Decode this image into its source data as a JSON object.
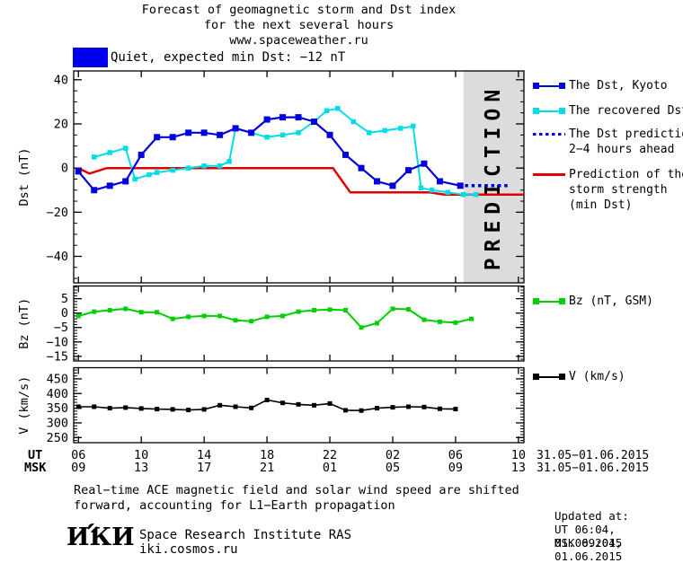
{
  "header": {
    "title_line1": "Forecast of geomagnetic storm and Dst index",
    "title_line2": "for the next several hours",
    "title_line3": "www.spaceweather.ru"
  },
  "status": {
    "label": "Quiet, expected min Dst: −12 nT",
    "swatch_color": "#0000ee"
  },
  "colors": {
    "dst": "#0000dd",
    "recovered": "#00dde6",
    "storm": "#e00000",
    "bz": "#00cf00",
    "v": "#000000",
    "band": "#dcdcdc",
    "band_text": "#c2c2c2"
  },
  "legend": {
    "dst_kyoto": {
      "label": "The Dst, Kyoto"
    },
    "recovered": {
      "label": "The recovered Dst"
    },
    "prediction": {
      "label_line1": "The Dst prediction",
      "label_line2": "2−4 hours ahead"
    },
    "storm": {
      "label_line1": "Prediction of the",
      "label_line2": "storm strength",
      "label_line3": "(min Dst)"
    },
    "bz": {
      "label": "Bz (nT, GSM)"
    },
    "v": {
      "label": "V (km/s)"
    }
  },
  "xaxis": {
    "ut_label": "UT",
    "msk_label": "MSK",
    "ticks": [
      {
        "h": 0,
        "ut": "06",
        "msk": "09"
      },
      {
        "h": 4,
        "ut": "10",
        "msk": "13"
      },
      {
        "h": 8,
        "ut": "14",
        "msk": "17"
      },
      {
        "h": 12,
        "ut": "18",
        "msk": "21"
      },
      {
        "h": 16,
        "ut": "22",
        "msk": "01"
      },
      {
        "h": 20,
        "ut": "02",
        "msk": "05"
      },
      {
        "h": 24,
        "ut": "06",
        "msk": "09"
      },
      {
        "h": 28,
        "ut": "10",
        "msk": "13"
      }
    ],
    "ut_date": "31.05−01.06.2015",
    "msk_date": "31.05−01.06.2015"
  },
  "chart_data": [
    {
      "id": "dst",
      "type": "line",
      "ylabel": "Dst (nT)",
      "xlim": [
        -0.3,
        28.35
      ],
      "ylim": [
        -52,
        44
      ],
      "yticks": [
        [
          40,
          "40"
        ],
        [
          20,
          "20"
        ],
        [
          0,
          "0"
        ],
        [
          -20,
          "−20"
        ],
        [
          -40,
          "−40"
        ]
      ],
      "yminor": 5,
      "xticks": [
        0,
        4,
        8,
        12,
        16,
        20,
        24,
        28
      ],
      "x_unit": "hours since 06:00 UT 31.05.2015",
      "prediction_band": {
        "from": 24.5,
        "label": "PREDICTION",
        "color": "#dcdcdc",
        "text_color": "#c2c2c2"
      },
      "series": [
        {
          "name": "Prediction of the storm strength (min Dst)",
          "color": "#e00000",
          "width": 2.5,
          "marker": 0,
          "points": [
            [
              0,
              0
            ],
            [
              0.7,
              -2.5
            ],
            [
              1.8,
              0
            ],
            [
              16.2,
              0
            ],
            [
              17.3,
              -11
            ],
            [
              22.3,
              -11
            ],
            [
              23.3,
              -12
            ],
            [
              28.35,
              -12
            ]
          ]
        },
        {
          "name": "The recovered Dst",
          "color": "#00dde6",
          "width": 2,
          "marker": 5.5,
          "points": [
            [
              1,
              5
            ],
            [
              2,
              7
            ],
            [
              3,
              9
            ],
            [
              3.6,
              -5
            ],
            [
              4.5,
              -3
            ],
            [
              5,
              -2
            ],
            [
              6,
              -1
            ],
            [
              7,
              0
            ],
            [
              8,
              1
            ],
            [
              9,
              1
            ],
            [
              9.6,
              3
            ],
            [
              10,
              18
            ],
            [
              11,
              16
            ],
            [
              12,
              14
            ],
            [
              13,
              15
            ],
            [
              14,
              16
            ],
            [
              15,
              21
            ],
            [
              15.8,
              26
            ],
            [
              16.5,
              27
            ],
            [
              17.5,
              21
            ],
            [
              18.5,
              16
            ],
            [
              19.5,
              17
            ],
            [
              20.5,
              18
            ],
            [
              21.3,
              19
            ],
            [
              21.8,
              -9
            ],
            [
              22.5,
              -10
            ],
            [
              23.5,
              -11
            ],
            [
              24.5,
              -12
            ],
            [
              25.3,
              -12
            ]
          ]
        },
        {
          "name": "The Dst, Kyoto",
          "color": "#0000dd",
          "width": 2.2,
          "marker": 7,
          "points": [
            [
              0,
              -1.5
            ],
            [
              1,
              -10
            ],
            [
              2,
              -8
            ],
            [
              3,
              -6
            ],
            [
              4,
              6
            ],
            [
              5,
              14
            ],
            [
              6,
              14
            ],
            [
              7,
              16
            ],
            [
              8,
              16
            ],
            [
              9,
              15
            ],
            [
              10,
              18
            ],
            [
              11,
              16
            ],
            [
              12,
              22
            ],
            [
              13,
              23
            ],
            [
              14,
              23
            ],
            [
              15,
              21
            ],
            [
              16,
              15
            ],
            [
              17,
              6
            ],
            [
              18,
              0
            ],
            [
              19,
              -6
            ],
            [
              20,
              -8
            ],
            [
              21,
              -1
            ],
            [
              22,
              2
            ],
            [
              23,
              -6
            ],
            [
              24.3,
              -8
            ]
          ]
        },
        {
          "name": "The Dst prediction 2−4 hours ahead",
          "color": "#0000dd",
          "width": 3.5,
          "marker": 0,
          "dash": "3.5,3.8",
          "points": [
            [
              24.6,
              -8
            ],
            [
              27.4,
              -8
            ]
          ]
        }
      ]
    },
    {
      "id": "bz",
      "type": "line",
      "ylabel": "Bz (nT)",
      "xlim": [
        -0.3,
        28.35
      ],
      "ylim": [
        -16.6,
        9.4
      ],
      "yticks": [
        [
          5,
          "5"
        ],
        [
          0,
          "0"
        ],
        [
          -5,
          "−5"
        ],
        [
          -10,
          "−10"
        ],
        [
          -15,
          "−15"
        ]
      ],
      "yminor": 1,
      "xticks": [
        0,
        4,
        8,
        12,
        16,
        20,
        24,
        28
      ],
      "series": [
        {
          "name": "Bz (nT, GSM)",
          "color": "#00cf00",
          "width": 2,
          "marker": 5,
          "points": [
            [
              0,
              -1
            ],
            [
              1,
              0.5
            ],
            [
              2,
              1
            ],
            [
              3,
              1.5
            ],
            [
              4,
              0.3
            ],
            [
              5,
              0.3
            ],
            [
              6,
              -2
            ],
            [
              7,
              -1.3
            ],
            [
              8,
              -1
            ],
            [
              9,
              -1
            ],
            [
              10,
              -2.5
            ],
            [
              11,
              -2.8
            ],
            [
              12,
              -1.3
            ],
            [
              13,
              -1
            ],
            [
              14,
              0.5
            ],
            [
              15,
              1
            ],
            [
              16,
              1.2
            ],
            [
              17,
              1
            ],
            [
              18,
              -5
            ],
            [
              19,
              -3.5
            ],
            [
              20,
              1.5
            ],
            [
              21,
              1.3
            ],
            [
              22,
              -2.3
            ],
            [
              23,
              -3
            ],
            [
              24,
              -3.3
            ],
            [
              25,
              -2
            ]
          ]
        }
      ]
    },
    {
      "id": "v",
      "type": "line",
      "ylabel": "V (km/s)",
      "xlim": [
        -0.3,
        28.35
      ],
      "ylim": [
        232.5,
        488
      ],
      "yticks": [
        [
          450,
          "450"
        ],
        [
          400,
          "400"
        ],
        [
          350,
          "350"
        ],
        [
          300,
          "300"
        ],
        [
          250,
          "250"
        ]
      ],
      "yminor": 10,
      "xticks": [
        0,
        4,
        8,
        12,
        16,
        20,
        24,
        28
      ],
      "series": [
        {
          "name": "V (km/s)",
          "color": "#000000",
          "width": 1.6,
          "marker": 5,
          "points": [
            [
              0,
              355
            ],
            [
              1,
              355
            ],
            [
              2,
              350
            ],
            [
              3,
              352
            ],
            [
              4,
              349
            ],
            [
              5,
              347
            ],
            [
              6,
              346
            ],
            [
              7,
              344
            ],
            [
              8,
              346
            ],
            [
              9,
              360
            ],
            [
              10,
              355
            ],
            [
              11,
              351
            ],
            [
              12,
              378
            ],
            [
              13,
              368
            ],
            [
              14,
              363
            ],
            [
              15,
              360
            ],
            [
              16,
              366
            ],
            [
              17,
              343
            ],
            [
              18,
              342
            ],
            [
              19,
              350
            ],
            [
              20,
              353
            ],
            [
              21,
              355
            ],
            [
              22,
              354
            ],
            [
              23,
              348
            ],
            [
              24,
              347
            ]
          ]
        }
      ]
    }
  ],
  "footer": {
    "note_line1": "Real−time ACE magnetic field and solar wind speed are shifted",
    "note_line2": "forward, accounting for L1−Earth propagation",
    "logo_text": "ИКИ",
    "institute": "Space Research Institute RAS",
    "website": "iki.cosmos.ru",
    "updated_label": "Updated at:",
    "updated_ut": "UT  06:04, 01.06.2015",
    "updated_msk": "MSK 09:04, 01.06.2015"
  }
}
